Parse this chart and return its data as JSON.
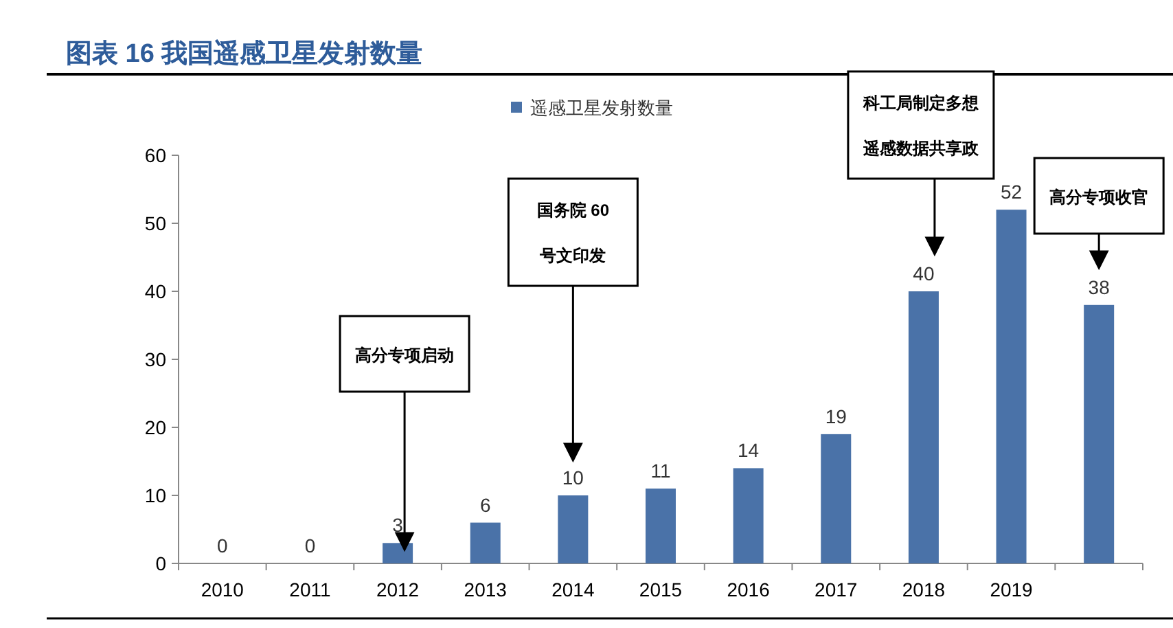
{
  "chart_data": {
    "type": "bar",
    "title": "图表 16  我国遥感卫星发射数量",
    "categories": [
      "2010",
      "2011",
      "2012",
      "2013",
      "2014",
      "2015",
      "2016",
      "2017",
      "2018",
      "2019",
      null
    ],
    "series": [
      {
        "name": "遥感卫星发射数量",
        "color": "#4a72a8",
        "values": [
          0,
          0,
          3,
          6,
          10,
          11,
          14,
          19,
          40,
          52,
          38
        ]
      }
    ],
    "ylim": [
      0,
      60
    ],
    "yticks": [
      0,
      10,
      20,
      30,
      40,
      50,
      60
    ],
    "data_labels": true,
    "legend": "top",
    "grid": false,
    "annotations": [
      "高分专项启动",
      "国务院 60号文印发",
      "科工局制定多想遥感数据共享政",
      "高分专项收官"
    ]
  }
}
